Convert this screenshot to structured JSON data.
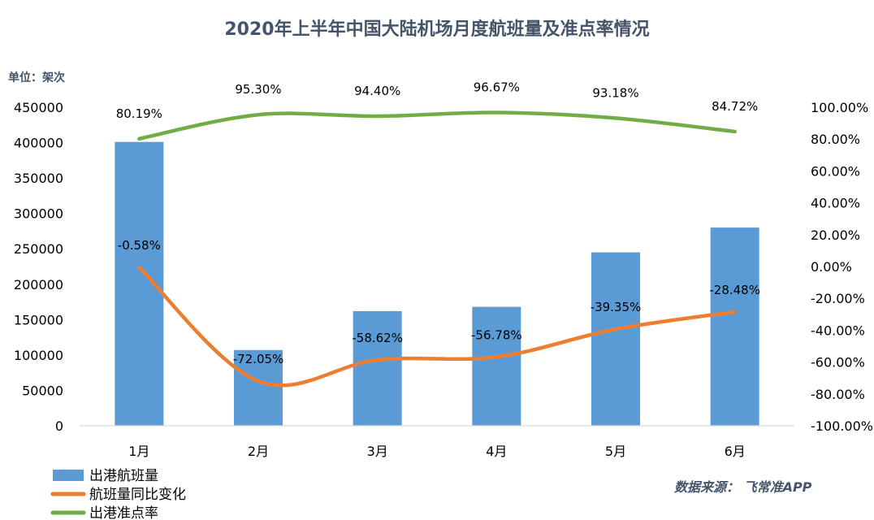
{
  "chart_data": {
    "type": "bar",
    "title": "2020年上半年中国大陆机场月度航班量及准点率情况",
    "unit_label": "单位：架次",
    "source": "数据来源：  飞常准APP",
    "categories": [
      "1月",
      "2月",
      "3月",
      "4月",
      "5月",
      "6月"
    ],
    "left_axis": {
      "ylim": [
        0,
        450000
      ],
      "ticks": [
        "0",
        "50000",
        "100000",
        "150000",
        "200000",
        "250000",
        "300000",
        "350000",
        "400000",
        "450000"
      ]
    },
    "right_axis": {
      "ylim": [
        -100,
        100
      ],
      "ticks": [
        "-100.00%",
        "-80.00%",
        "-60.00%",
        "-40.00%",
        "-20.00%",
        "0.00%",
        "20.00%",
        "40.00%",
        "60.00%",
        "80.00%",
        "100.00%"
      ]
    },
    "series": [
      {
        "name": "出港航班量",
        "type": "bar",
        "axis": "left",
        "color": "#5b9bd5",
        "values": [
          401000,
          107000,
          162000,
          168000,
          245000,
          280000
        ]
      },
      {
        "name": "航班量同比变化",
        "type": "line",
        "axis": "right",
        "color": "#ed7d31",
        "values": [
          -0.58,
          -72.05,
          -58.62,
          -56.78,
          -39.35,
          -28.48
        ],
        "labels": [
          "-0.58%",
          "-72.05%",
          "-58.62%",
          "-56.78%",
          "-39.35%",
          "-28.48%"
        ]
      },
      {
        "name": "出港准点率",
        "type": "line",
        "axis": "right",
        "color": "#70ad47",
        "values": [
          80.19,
          95.3,
          94.4,
          96.67,
          93.18,
          84.72
        ],
        "labels": [
          "80.19%",
          "95.30%",
          "94.40%",
          "96.67%",
          "93.18%",
          "84.72%"
        ]
      }
    ]
  }
}
